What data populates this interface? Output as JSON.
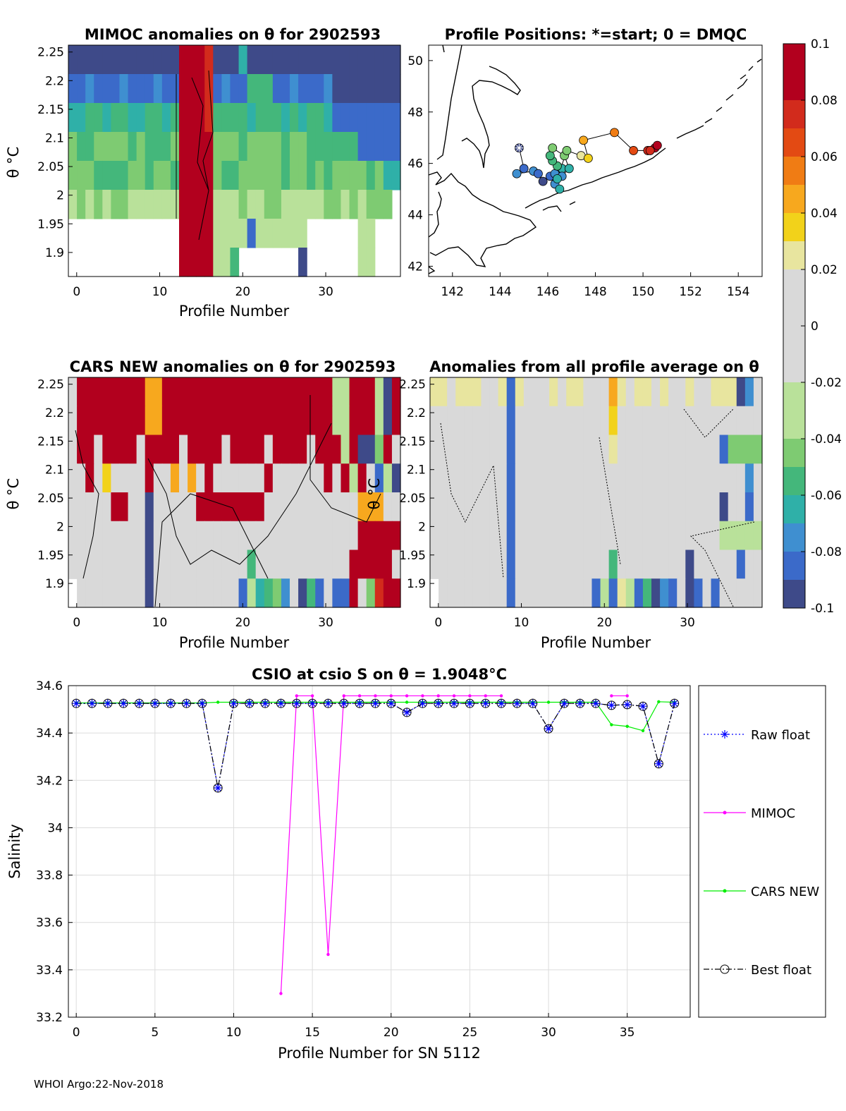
{
  "colors": {
    "mimoc": "#ff00ff",
    "cars": "#00ee00",
    "raw": "#0000ff",
    "best": "#000000",
    "grid": "#dcdcdc",
    "colormap": [
      "#3e4a89",
      "#3b6ac9",
      "#3f8fd0",
      "#2fb0a8",
      "#44b77b",
      "#7ecb72",
      "#b9e19a",
      "#d9d9d9",
      "#e8e59f",
      "#f2d21a",
      "#f7a81e",
      "#f07c14",
      "#e34a13",
      "#d22b1c",
      "#b2001e"
    ]
  },
  "panel_mimoc": {
    "title": "MIMOC anomalies on θ  for 2902593",
    "ylabel": "θ °C",
    "xlabel": "Profile Number",
    "yticks": [
      "2.25",
      "2.2",
      "2.15",
      "2.1",
      "2.05",
      "2",
      "1.95",
      "1.9"
    ],
    "xticks": [
      "0",
      "10",
      "20",
      "30"
    ]
  },
  "panel_map": {
    "title": "Profile Positions: *=start; 0 = DMQC",
    "xticks": [
      "142",
      "144",
      "146",
      "148",
      "150",
      "152",
      "154"
    ],
    "yticks": [
      "50",
      "48",
      "46",
      "44",
      "42"
    ]
  },
  "panel_cars": {
    "title": "CARS NEW anomalies on θ for 2902593",
    "ylabel": "θ °C",
    "xlabel": "Profile Number",
    "yticks": [
      "2.25",
      "2.2",
      "2.15",
      "2.1",
      "2.05",
      "2",
      "1.95",
      "1.9"
    ],
    "xticks": [
      "0",
      "10",
      "20",
      "30"
    ]
  },
  "panel_avg": {
    "title": "Anomalies from all profile average on θ",
    "xlabel": "Profile Number",
    "yticks": [
      "2.25",
      "2.2",
      "2.15",
      "2.1",
      "2.05",
      "2",
      "1.95",
      "1.9"
    ],
    "xticks": [
      "0",
      "10",
      "20",
      "30"
    ],
    "overlap_label": "θ °C"
  },
  "colorbar": {
    "ticks": [
      "0.1",
      "0.08",
      "0.06",
      "0.04",
      "0.02",
      "0",
      "-0.02",
      "-0.04",
      "-0.06",
      "-0.08",
      "-0.1"
    ]
  },
  "chart_data": {
    "type": "line",
    "title": "CSIO at csio S on θ = 1.9048°C",
    "xlabel": "Profile Number for SN 5112",
    "ylabel": "Salinity",
    "xlim": [
      -0.5,
      39
    ],
    "ylim": [
      33.2,
      34.6
    ],
    "xticks": [
      "0",
      "5",
      "10",
      "15",
      "20",
      "25",
      "30",
      "35"
    ],
    "yticks": [
      "34.6",
      "34.4",
      "34.2",
      "34",
      "33.8",
      "33.6",
      "33.4",
      "33.2"
    ],
    "x": [
      0,
      1,
      2,
      3,
      4,
      5,
      6,
      7,
      8,
      9,
      10,
      11,
      12,
      13,
      14,
      15,
      16,
      17,
      18,
      19,
      20,
      21,
      22,
      23,
      24,
      25,
      26,
      27,
      28,
      29,
      30,
      31,
      32,
      33,
      34,
      35,
      36,
      37,
      38
    ],
    "series": [
      {
        "name": "Raw float",
        "values": [
          34.525,
          34.525,
          34.525,
          34.525,
          34.525,
          34.525,
          34.525,
          34.525,
          34.525,
          34.168,
          34.525,
          34.525,
          34.525,
          34.525,
          34.525,
          34.525,
          34.525,
          34.525,
          34.525,
          34.525,
          34.525,
          34.487,
          34.525,
          34.525,
          34.525,
          34.525,
          34.525,
          34.525,
          34.525,
          34.525,
          34.418,
          34.525,
          34.525,
          34.525,
          34.517,
          34.52,
          34.513,
          34.27,
          34.525
        ]
      },
      {
        "name": "MIMOC",
        "values": [
          null,
          null,
          null,
          null,
          null,
          null,
          null,
          null,
          null,
          null,
          null,
          null,
          null,
          33.3,
          34.557,
          34.557,
          33.465,
          34.557,
          34.557,
          34.557,
          34.557,
          34.557,
          34.557,
          34.557,
          34.557,
          34.557,
          34.557,
          34.557,
          null,
          null,
          null,
          null,
          null,
          null,
          34.557,
          34.557,
          null,
          null,
          null
        ]
      },
      {
        "name": "CARS NEW",
        "values": [
          34.527,
          34.527,
          34.527,
          34.527,
          34.527,
          34.527,
          34.527,
          34.527,
          34.527,
          34.53,
          34.53,
          34.53,
          34.53,
          34.53,
          34.53,
          34.53,
          34.53,
          34.53,
          34.53,
          34.53,
          34.53,
          34.53,
          34.53,
          34.53,
          34.53,
          34.53,
          34.53,
          34.53,
          34.53,
          34.53,
          34.53,
          34.53,
          34.53,
          34.53,
          34.435,
          34.428,
          34.41,
          34.532,
          34.53
        ]
      },
      {
        "name": "Best float",
        "values": [
          34.525,
          34.525,
          34.525,
          34.525,
          34.525,
          34.525,
          34.525,
          34.525,
          34.525,
          34.168,
          34.525,
          34.525,
          34.525,
          34.525,
          34.525,
          34.525,
          34.525,
          34.525,
          34.525,
          34.525,
          34.525,
          34.487,
          34.525,
          34.525,
          34.525,
          34.525,
          34.525,
          34.525,
          34.525,
          34.525,
          34.418,
          34.525,
          34.525,
          34.525,
          34.517,
          34.52,
          34.513,
          34.27,
          34.525
        ]
      }
    ],
    "legend": [
      "Raw float",
      "MIMOC",
      "CARS NEW",
      "Best float"
    ]
  },
  "footer": "WHOI Argo:22-Nov-2018"
}
